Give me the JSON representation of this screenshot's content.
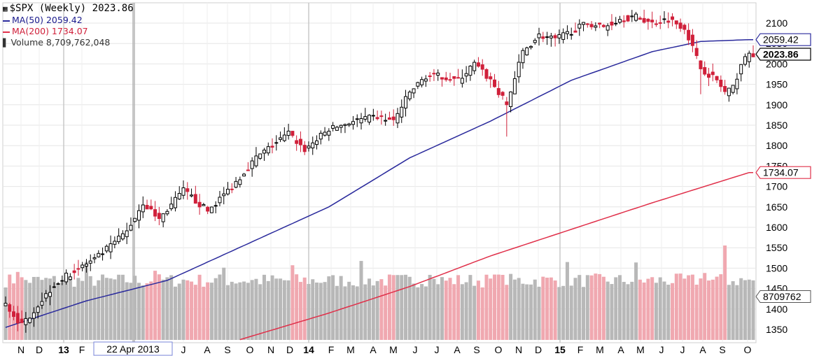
{
  "legend": {
    "symbol": "$SPX",
    "period": "(Weekly)",
    "last": "2023.86",
    "ma50_label": "MA(50) 2059.42",
    "ma200_label": "MA(200) 1734.07",
    "volume_label": "Volume 8,709,762,048"
  },
  "colors": {
    "up": "#000000",
    "down": "#d0203a",
    "ma50": "#2a2a9c",
    "ma200": "#e0304a",
    "vol_up": "#b8b8b8",
    "vol_down": "#f0a8b0",
    "grid": "#e6e6e6"
  },
  "chart_data": {
    "type": "candlestick",
    "title": "$SPX (Weekly)",
    "ylim": [
      1325,
      2140
    ],
    "y_ticks": [
      "1350",
      "1400",
      "1450",
      "1500",
      "1550",
      "1600",
      "1650",
      "1700",
      "1750",
      "1800",
      "1850",
      "1900",
      "1950",
      "2000",
      "2050",
      "2100"
    ],
    "x_tick_labels": [
      "N",
      "D",
      "13",
      "F",
      "22 Apr 2013",
      "J",
      "A",
      "S",
      "O",
      "N",
      "D",
      "14",
      "F",
      "M",
      "A",
      "M",
      "J",
      "J",
      "A",
      "S",
      "O",
      "N",
      "D",
      "15",
      "F",
      "M",
      "A",
      "M",
      "J",
      "J",
      "A",
      "S",
      "O"
    ],
    "price_flags": [
      "2059.42",
      "2023.86",
      "1734.07"
    ],
    "volume_flag": "8709762",
    "cursor_label": "22 Apr 2013",
    "close_anchors": [
      [
        0,
        1410
      ],
      [
        4,
        1360
      ],
      [
        8,
        1410
      ],
      [
        12,
        1460
      ],
      [
        18,
        1500
      ],
      [
        22,
        1520
      ],
      [
        26,
        1555
      ],
      [
        30,
        1590
      ],
      [
        34,
        1660
      ],
      [
        38,
        1620
      ],
      [
        44,
        1690
      ],
      [
        50,
        1640
      ],
      [
        56,
        1700
      ],
      [
        62,
        1770
      ],
      [
        66,
        1800
      ],
      [
        70,
        1830
      ],
      [
        74,
        1790
      ],
      [
        80,
        1840
      ],
      [
        86,
        1860
      ],
      [
        92,
        1870
      ],
      [
        96,
        1860
      ],
      [
        100,
        1930
      ],
      [
        104,
        1970
      ],
      [
        108,
        1970
      ],
      [
        112,
        1960
      ],
      [
        116,
        2000
      ],
      [
        120,
        1960
      ],
      [
        124,
        1900
      ],
      [
        128,
        2030
      ],
      [
        132,
        2070
      ],
      [
        136,
        2060
      ],
      [
        140,
        2080
      ],
      [
        144,
        2100
      ],
      [
        148,
        2090
      ],
      [
        152,
        2110
      ],
      [
        156,
        2115
      ],
      [
        160,
        2100
      ],
      [
        164,
        2110
      ],
      [
        168,
        2090
      ],
      [
        172,
        1990
      ],
      [
        176,
        1960
      ],
      [
        178,
        1930
      ],
      [
        180,
        1940
      ],
      [
        182,
        2000
      ],
      [
        184,
        2024
      ]
    ],
    "ma50_anchors": [
      [
        0,
        1355
      ],
      [
        20,
        1420
      ],
      [
        40,
        1470
      ],
      [
        60,
        1560
      ],
      [
        80,
        1650
      ],
      [
        100,
        1770
      ],
      [
        120,
        1860
      ],
      [
        140,
        1960
      ],
      [
        160,
        2030
      ],
      [
        172,
        2055
      ],
      [
        184,
        2059.42
      ]
    ],
    "ma200_anchors": [
      [
        58,
        1325
      ],
      [
        80,
        1390
      ],
      [
        100,
        1455
      ],
      [
        120,
        1530
      ],
      [
        140,
        1595
      ],
      [
        160,
        1660
      ],
      [
        184,
        1734.07
      ]
    ],
    "series": [
      {
        "name": "$SPX",
        "type": "candlestick"
      },
      {
        "name": "MA(50)",
        "last": 2059.42
      },
      {
        "name": "MA(200)",
        "last": 1734.07
      },
      {
        "name": "Volume",
        "last": 8709762048
      }
    ]
  }
}
